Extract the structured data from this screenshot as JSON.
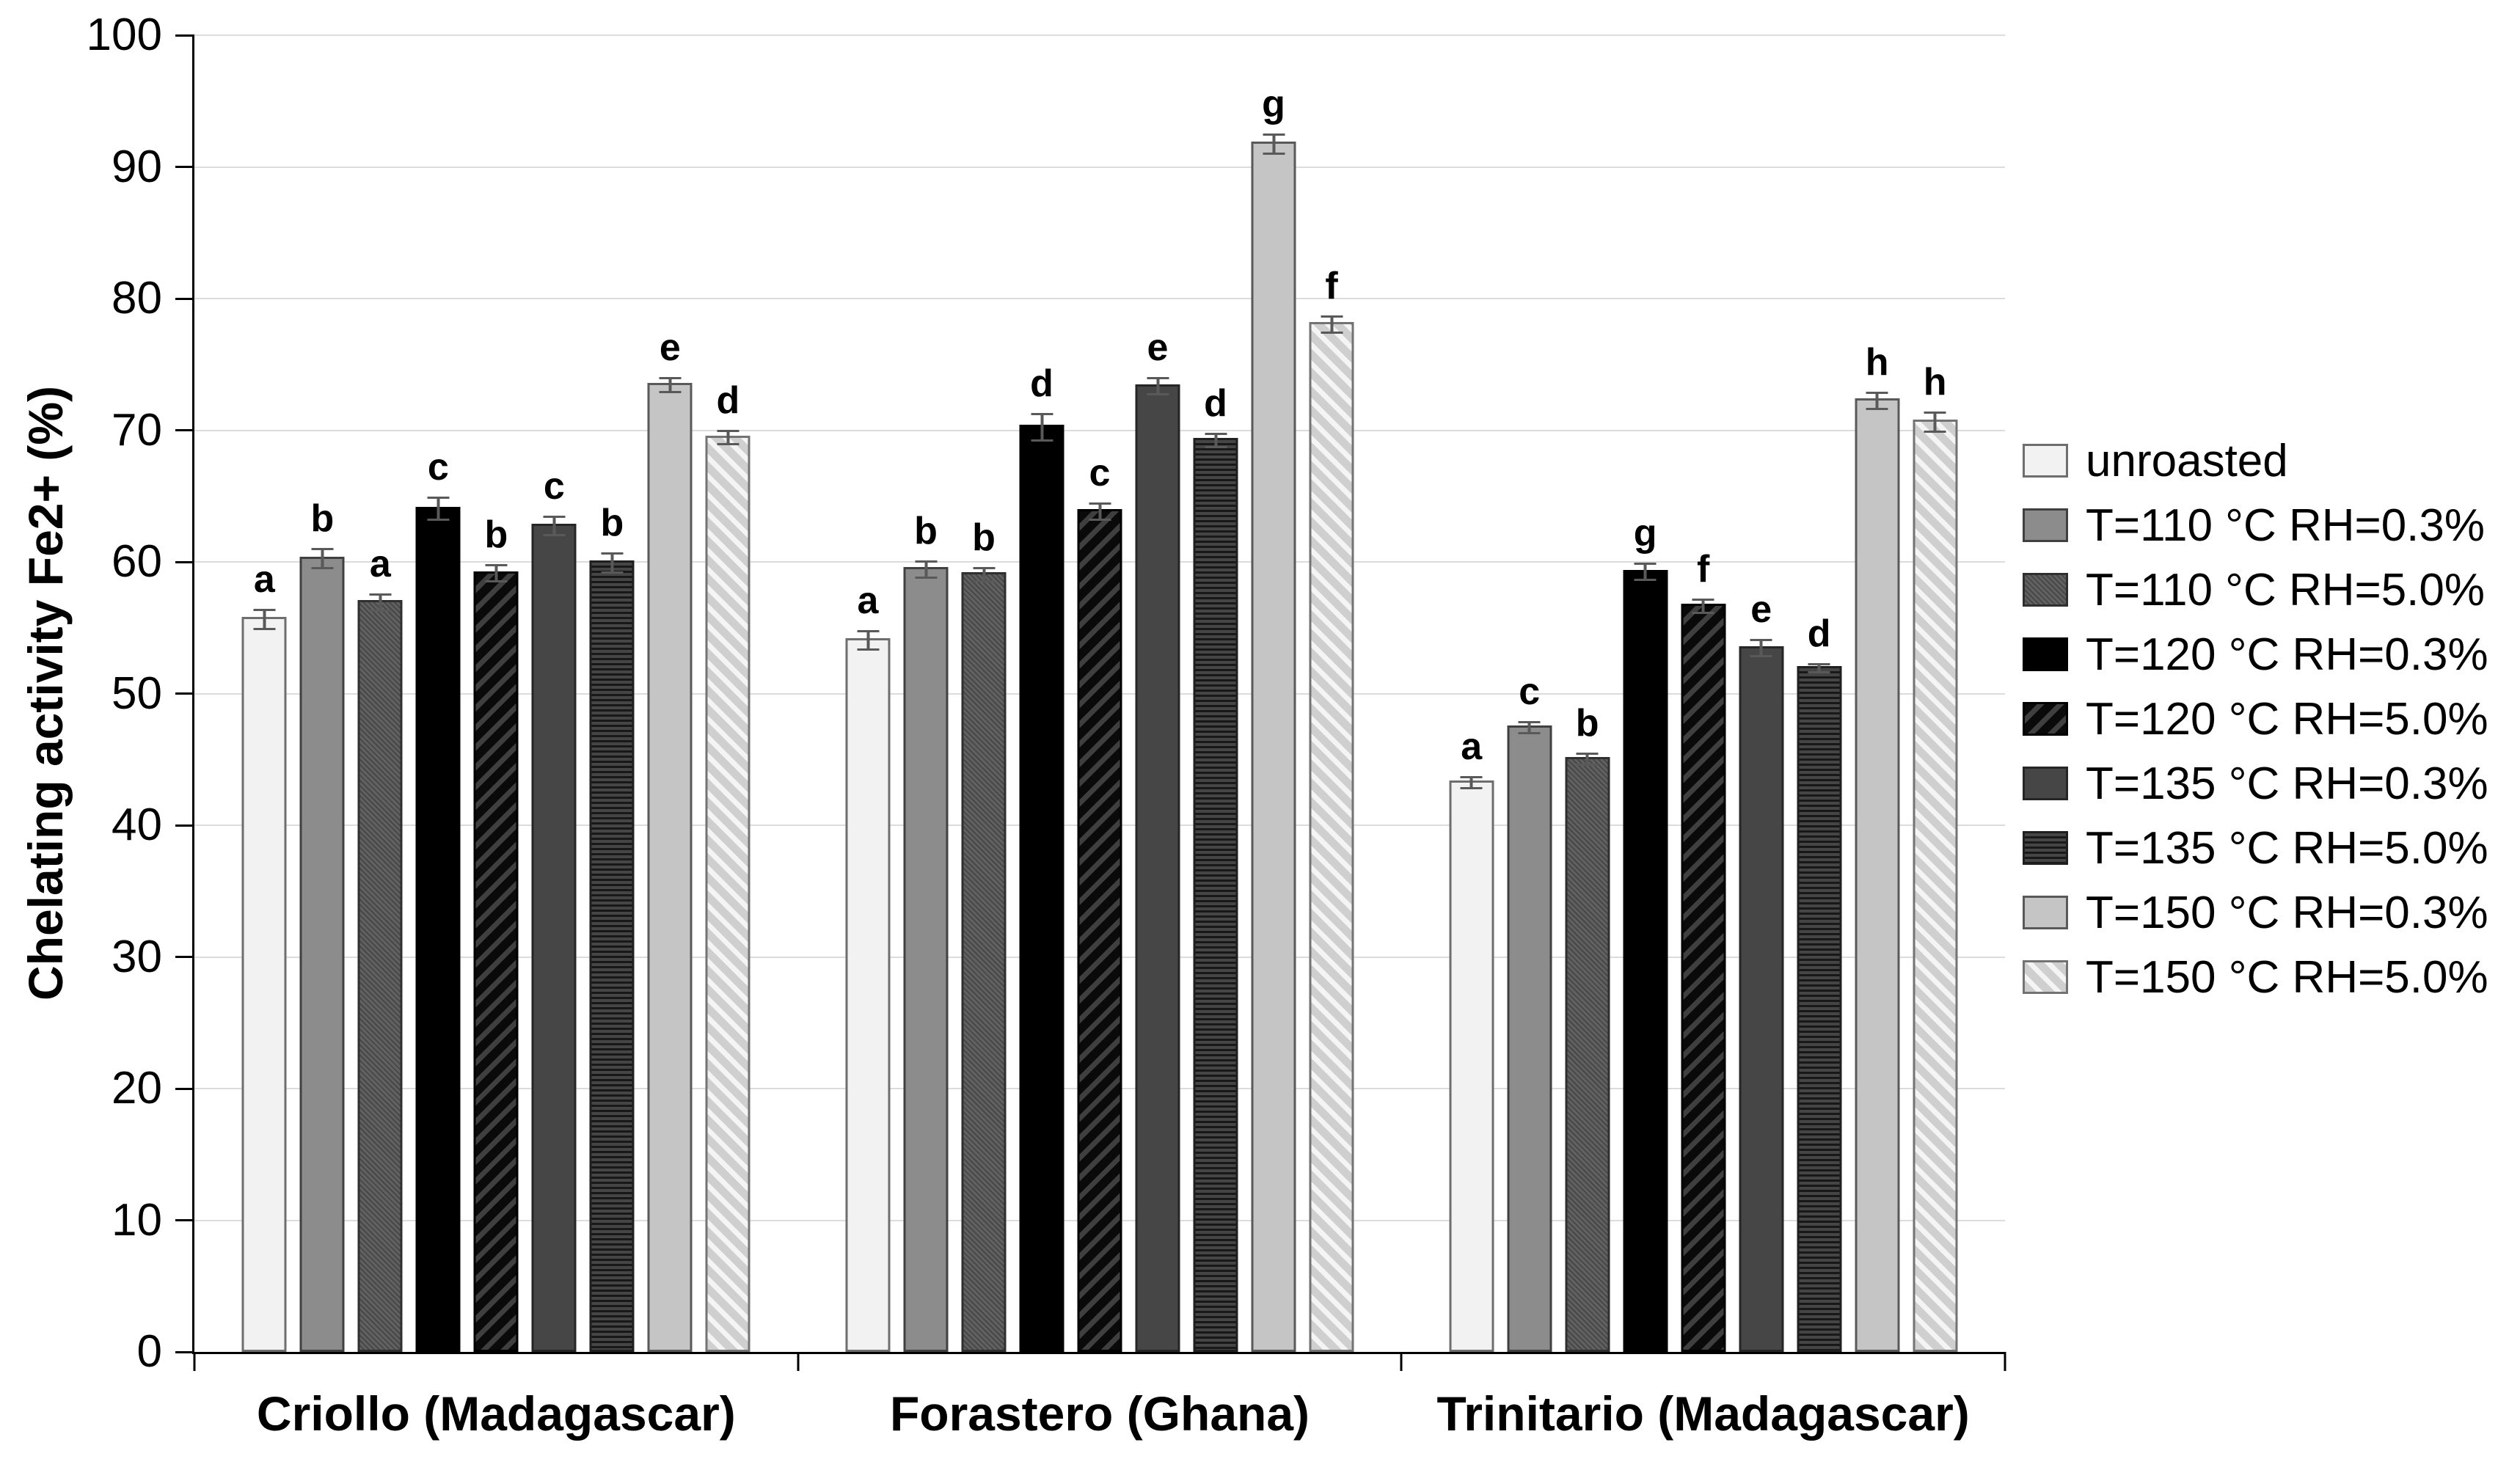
{
  "chart_data": {
    "type": "bar",
    "title": "",
    "ylabel": "Chelating activity Fe2+ (%)",
    "xlabel": "",
    "ylim": [
      0,
      100
    ],
    "ytick_step": 10,
    "grid": "horizontal",
    "legend_position": "right",
    "categories": [
      "Criollo  (Madagascar)",
      "Forastero (Ghana)",
      "Trinitario (Madagascar)"
    ],
    "series": [
      {
        "name": "unroasted",
        "pattern": "solid",
        "fill": "#f2f2f2",
        "stripe": "",
        "border": "#6e6e6e",
        "values": [
          55.8,
          54.2,
          43.4
        ],
        "errors": [
          0.8,
          0.8,
          0.5
        ],
        "sig_letters": [
          "a",
          "a",
          "a"
        ]
      },
      {
        "name": "T=110 °C RH=0.3%",
        "pattern": "solid",
        "fill": "#8c8c8c",
        "stripe": "",
        "border": "#404040",
        "values": [
          60.4,
          59.6,
          47.6
        ],
        "errors": [
          0.8,
          0.7,
          0.5
        ],
        "sig_letters": [
          "b",
          "b",
          "c"
        ]
      },
      {
        "name": "T=110 °C RH=5.0%",
        "pattern": "fine",
        "fill": "#616161",
        "stripe": "#474747",
        "border": "#2f2f2f",
        "values": [
          57.1,
          59.2,
          45.2
        ],
        "errors": [
          0.7,
          0.6,
          0.5
        ],
        "sig_letters": [
          "a",
          "b",
          "b"
        ]
      },
      {
        "name": "T=120 °C RH=0.3%",
        "pattern": "solid",
        "fill": "#000000",
        "stripe": "",
        "border": "#000000",
        "values": [
          64.2,
          70.4,
          59.4
        ],
        "errors": [
          0.9,
          1.1,
          0.7
        ],
        "sig_letters": [
          "c",
          "d",
          "g"
        ]
      },
      {
        "name": "T=120 °C RH=5.0%",
        "pattern": "slash",
        "fill": "#0a0a0a",
        "stripe": "#3f3f3f",
        "border": "#000000",
        "values": [
          59.3,
          64.0,
          56.8
        ],
        "errors": [
          0.7,
          0.7,
          0.6
        ],
        "sig_letters": [
          "b",
          "c",
          "f"
        ]
      },
      {
        "name": "T=135 °C RH=0.3%",
        "pattern": "solid",
        "fill": "#464646",
        "stripe": "",
        "border": "#262626",
        "values": [
          62.9,
          73.5,
          53.6
        ],
        "errors": [
          0.8,
          0.7,
          0.7
        ],
        "sig_letters": [
          "c",
          "e",
          "e"
        ]
      },
      {
        "name": "T=135 °C RH=5.0%",
        "pattern": "horiz",
        "fill": "#454545",
        "stripe": "#181818",
        "border": "#1f1f1f",
        "values": [
          60.1,
          69.4,
          52.1
        ],
        "errors": [
          0.8,
          0.6,
          0.4
        ],
        "sig_letters": [
          "b",
          "d",
          "d"
        ]
      },
      {
        "name": "T=150 °C RH=0.3%",
        "pattern": "solid",
        "fill": "#c5c5c5",
        "stripe": "",
        "border": "#595959",
        "values": [
          73.6,
          91.9,
          72.4
        ],
        "errors": [
          0.6,
          0.8,
          0.7
        ],
        "sig_letters": [
          "e",
          "g",
          "h"
        ]
      },
      {
        "name": "T=150 °C RH=5.0%",
        "pattern": "back",
        "fill": "#cfcfcf",
        "stripe": "#f4f4f4",
        "border": "#737373",
        "values": [
          69.6,
          78.2,
          70.8
        ],
        "errors": [
          0.6,
          0.7,
          0.8
        ],
        "sig_letters": [
          "d",
          "f",
          "h"
        ]
      }
    ],
    "colors": {
      "background": "#ffffff",
      "gridline": "#dcdcdc",
      "axis": "#000000",
      "error_bar": "#595959",
      "sig_letter": "#000000"
    }
  }
}
